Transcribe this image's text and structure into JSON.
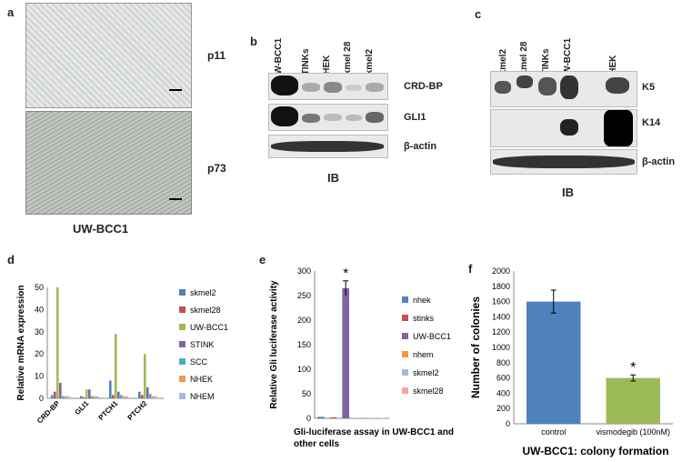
{
  "panel_a": {
    "letter": "a",
    "top_label": "p11",
    "bottom_label": "p73",
    "caption": "UW-BCC1"
  },
  "panel_b": {
    "letter": "b",
    "lanes": [
      "UW-BCC1",
      "STINKs",
      "NHEK",
      "Skmel 28",
      "Skmel2"
    ],
    "rows": [
      "CRD-BP",
      "GLI1",
      "β-actin"
    ],
    "footer": "IB"
  },
  "panel_c": {
    "letter": "c",
    "lanes": [
      "Skmel2",
      "Skmel 28",
      "STINKs",
      "UW-BCC1",
      "NHEK"
    ],
    "rows": [
      "K5",
      "K14",
      "β-actin"
    ],
    "footer": "IB"
  },
  "colors": {
    "c1": "#4f81bd",
    "c2": "#c0504d",
    "c3": "#9bbb59",
    "c4": "#8064a2",
    "c5": "#4bacc6",
    "c6": "#f79646",
    "c7": "#a5b7e0",
    "c8": "#f2a3a0"
  },
  "chart_data": [
    {
      "panel": "d",
      "type": "bar",
      "ylabel": "Relative mRNA expression",
      "categories": [
        "CRD-BP",
        "GLI1",
        "PTCH1",
        "PTCH2"
      ],
      "ylim": [
        0,
        50
      ],
      "yticks": [
        "0",
        "10",
        "20",
        "30",
        "40",
        "50"
      ],
      "series": [
        {
          "name": "skmel2",
          "color": "#4f81bd",
          "values": [
            1.5,
            1,
            8,
            3
          ]
        },
        {
          "name": "skmel28",
          "color": "#c0504d",
          "values": [
            3,
            0.5,
            1.5,
            1.5
          ]
        },
        {
          "name": "UW-BCC1",
          "color": "#9bbb59",
          "values": [
            50,
            4,
            29,
            20
          ]
        },
        {
          "name": "STINK",
          "color": "#8064a2",
          "values": [
            7,
            4,
            3,
            5
          ]
        },
        {
          "name": "SCC",
          "color": "#4bacc6",
          "values": [
            1,
            1,
            1.5,
            2
          ]
        },
        {
          "name": "NHEK",
          "color": "#f79646",
          "values": [
            1,
            1,
            1,
            1
          ]
        },
        {
          "name": "NHEM",
          "color": "#a5b7e0",
          "values": [
            1,
            1,
            1,
            1
          ]
        }
      ]
    },
    {
      "panel": "e",
      "type": "bar",
      "ylabel": "Relative Gli luciferase activity",
      "xlabel": "Gli-luciferase assay in UW-BCC1 and other cells",
      "ylim": [
        0,
        300
      ],
      "yticks": [
        "0",
        "50",
        "100",
        "150",
        "200",
        "250",
        "300"
      ],
      "star": "*",
      "series": [
        {
          "name": "nhek",
          "color": "#4f81bd",
          "value": 3
        },
        {
          "name": "stinks",
          "color": "#c0504d",
          "value": 2
        },
        {
          "name": "UW-BCC1",
          "color": "#8064a2",
          "value": 265,
          "err": 15
        },
        {
          "name": "nhem",
          "color": "#f79646",
          "value": 1
        },
        {
          "name": "skmel2",
          "color": "#a5b7e0",
          "value": 1
        },
        {
          "name": "skmel28",
          "color": "#f2a3a0",
          "value": 1
        }
      ]
    },
    {
      "panel": "f",
      "type": "bar",
      "ylabel": "Number of colonies",
      "title": "UW-BCC1: colony formation",
      "categories": [
        "control",
        "vismodegib (100nM)"
      ],
      "values": [
        1600,
        600
      ],
      "errors": [
        150,
        40
      ],
      "colors": [
        "#4f81bd",
        "#9bbb59"
      ],
      "ylim": [
        0,
        2000
      ],
      "yticks": [
        "0",
        "200",
        "400",
        "600",
        "800",
        "1000",
        "1200",
        "1400",
        "1600",
        "1800",
        "2000"
      ],
      "star": "*"
    }
  ]
}
